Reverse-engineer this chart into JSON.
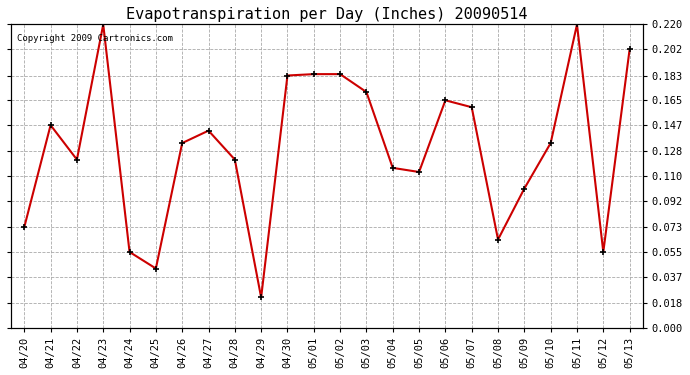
{
  "title": "Evapotranspiration per Day (Inches) 20090514",
  "copyright": "Copyright 2009 Cartronics.com",
  "x_labels": [
    "04/20",
    "04/21",
    "04/22",
    "04/23",
    "04/24",
    "04/25",
    "04/26",
    "04/27",
    "04/28",
    "04/29",
    "04/30",
    "05/01",
    "05/02",
    "05/03",
    "05/04",
    "05/05",
    "05/06",
    "05/07",
    "05/08",
    "05/09",
    "05/10",
    "05/11",
    "05/12",
    "05/13"
  ],
  "y_values": [
    0.073,
    0.147,
    0.122,
    0.22,
    0.055,
    0.043,
    0.134,
    0.143,
    0.122,
    0.022,
    0.183,
    0.184,
    0.184,
    0.171,
    0.116,
    0.113,
    0.165,
    0.16,
    0.064,
    0.101,
    0.134,
    0.22,
    0.055,
    0.202
  ],
  "line_color": "#cc0000",
  "marker": "+",
  "marker_size": 5,
  "marker_color": "#000000",
  "line_width": 1.5,
  "background_color": "#ffffff",
  "plot_bg_color": "#ffffff",
  "grid_color": "#aaaaaa",
  "grid_style": "--",
  "ylim": [
    0.0,
    0.22
  ],
  "yticks": [
    0.0,
    0.018,
    0.037,
    0.055,
    0.073,
    0.092,
    0.11,
    0.128,
    0.147,
    0.165,
    0.183,
    0.202,
    0.22
  ],
  "title_fontsize": 11,
  "tick_fontsize": 7.5,
  "copyright_fontsize": 6.5,
  "figsize": [
    6.9,
    3.75
  ],
  "dpi": 100
}
